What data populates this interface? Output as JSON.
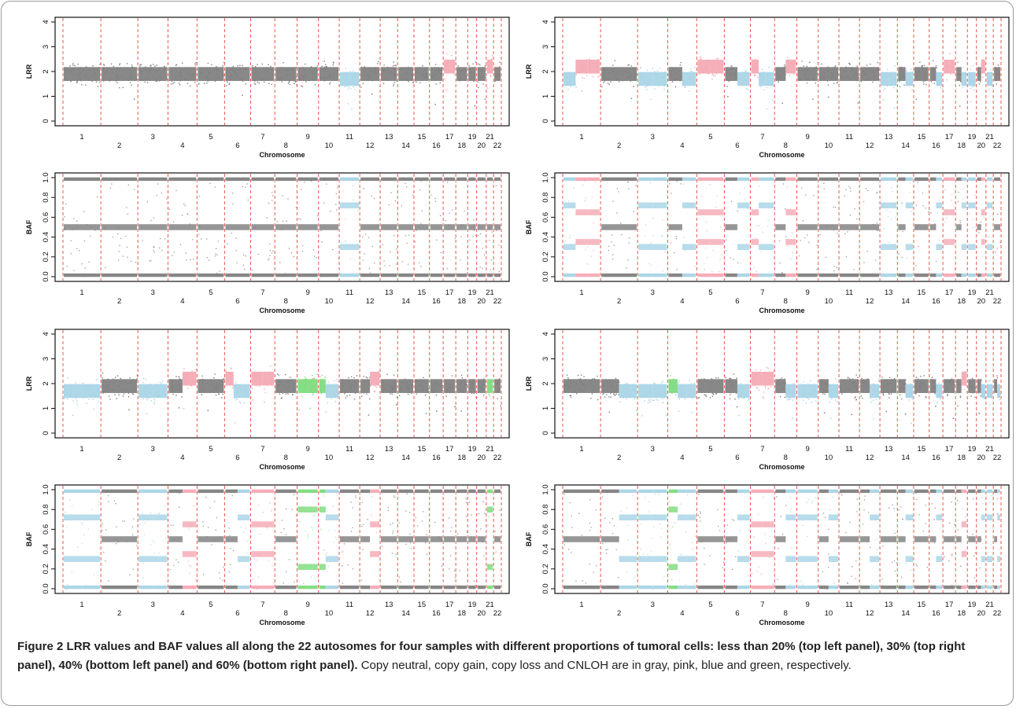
{
  "caption": {
    "label": "Figure 2",
    "title": "LRR values and BAF values all along the 22 autosomes for four samples with different proportions of tumoral cells: less than 20% (top left panel), 30% (top right panel), 40% (bottom left panel) and 60% (bottom right panel).",
    "description": "Copy neutral, copy gain, copy loss and CNLOH are in gray, pink, blue and green, respectively."
  },
  "colors": {
    "neutral": "#7f7f7f",
    "gain": "#f4a9b4",
    "loss": "#a8d4e6",
    "cnloh": "#7cdc7c",
    "separator": "#e8584c"
  },
  "chart_data": [
    {
      "type": "scatter",
      "panel": "top-left",
      "plot": "LRR",
      "ylabel": "LRR",
      "xlabel": "Chromosome",
      "yticks": [
        "0",
        "1",
        "2",
        "3",
        "4"
      ],
      "ylim": [
        0,
        4
      ],
      "chromosomes": [
        "1",
        "2",
        "3",
        "4",
        "5",
        "6",
        "7",
        "8",
        "9",
        "10",
        "11",
        "12",
        "13",
        "14",
        "15",
        "16",
        "17",
        "18",
        "19",
        "20",
        "21",
        "22"
      ],
      "segments": [
        [
          11,
          "loss"
        ],
        [
          17,
          "gain"
        ],
        [
          21,
          "gain"
        ]
      ]
    },
    {
      "type": "scatter",
      "panel": "top-left",
      "plot": "BAF",
      "ylabel": "BAF",
      "xlabel": "Chromosome",
      "yticks": [
        "0.0",
        "0.2",
        "0.4",
        "0.6",
        "0.8",
        "1.0"
      ],
      "ylim": [
        0,
        1
      ],
      "chromosomes": [
        "1",
        "2",
        "3",
        "4",
        "5",
        "6",
        "7",
        "8",
        "9",
        "10",
        "11",
        "12",
        "13",
        "14",
        "15",
        "16",
        "17",
        "18",
        "19",
        "20",
        "21",
        "22"
      ],
      "segments": [
        [
          11,
          "loss"
        ]
      ]
    },
    {
      "type": "scatter",
      "panel": "top-right",
      "plot": "LRR",
      "ylabel": "LRR",
      "xlabel": "Chromosome",
      "yticks": [
        "0",
        "1",
        "2",
        "3",
        "4"
      ],
      "ylim": [
        0,
        4
      ],
      "chromosomes": [
        "1",
        "2",
        "3",
        "4",
        "5",
        "6",
        "7",
        "8",
        "9",
        "10",
        "11",
        "12",
        "13",
        "14",
        "15",
        "16",
        "17",
        "18",
        "19",
        "20",
        "21",
        "22"
      ],
      "segments": [
        [
          1,
          "loss"
        ],
        [
          1,
          "gain"
        ],
        [
          3,
          "loss"
        ],
        [
          4,
          "loss"
        ],
        [
          5,
          "gain"
        ],
        [
          6,
          "loss"
        ],
        [
          7,
          "gain"
        ],
        [
          7,
          "loss"
        ],
        [
          8,
          "gain"
        ],
        [
          13,
          "loss"
        ],
        [
          14,
          "loss"
        ],
        [
          16,
          "loss"
        ],
        [
          17,
          "gain"
        ],
        [
          18,
          "loss"
        ],
        [
          19,
          "loss"
        ],
        [
          20,
          "gain"
        ],
        [
          21,
          "loss"
        ]
      ]
    },
    {
      "type": "scatter",
      "panel": "top-right",
      "plot": "BAF",
      "ylabel": "BAF",
      "xlabel": "Chromosome",
      "yticks": [
        "0.0",
        "0.2",
        "0.4",
        "0.6",
        "0.8",
        "1.0"
      ],
      "ylim": [
        0,
        1
      ],
      "chromosomes": [
        "1",
        "2",
        "3",
        "4",
        "5",
        "6",
        "7",
        "8",
        "9",
        "10",
        "11",
        "12",
        "13",
        "14",
        "15",
        "16",
        "17",
        "18",
        "19",
        "20",
        "21",
        "22"
      ],
      "segments": [
        [
          1,
          "loss"
        ],
        [
          1,
          "gain"
        ],
        [
          3,
          "loss"
        ],
        [
          4,
          "loss"
        ],
        [
          5,
          "gain"
        ],
        [
          6,
          "loss"
        ],
        [
          7,
          "gain"
        ],
        [
          7,
          "loss"
        ],
        [
          8,
          "gain"
        ],
        [
          13,
          "loss"
        ],
        [
          14,
          "loss"
        ],
        [
          16,
          "loss"
        ],
        [
          17,
          "gain"
        ],
        [
          18,
          "loss"
        ],
        [
          19,
          "loss"
        ],
        [
          20,
          "gain"
        ],
        [
          21,
          "loss"
        ]
      ]
    },
    {
      "type": "scatter",
      "panel": "bottom-left",
      "plot": "LRR",
      "ylabel": "LRR",
      "xlabel": "Chromosome",
      "yticks": [
        "0",
        "1",
        "2",
        "3",
        "4"
      ],
      "ylim": [
        0,
        4
      ],
      "chromosomes": [
        "1",
        "2",
        "3",
        "4",
        "5",
        "6",
        "7",
        "8",
        "9",
        "10",
        "11",
        "12",
        "13",
        "14",
        "15",
        "16",
        "17",
        "18",
        "19",
        "20",
        "21",
        "22"
      ],
      "segments": [
        [
          1,
          "loss"
        ],
        [
          3,
          "loss"
        ],
        [
          4,
          "gain"
        ],
        [
          6,
          "gain"
        ],
        [
          6,
          "loss"
        ],
        [
          7,
          "gain"
        ],
        [
          9,
          "cnloh"
        ],
        [
          10,
          "cnloh"
        ],
        [
          10,
          "loss"
        ],
        [
          12,
          "gain"
        ],
        [
          21,
          "cnloh"
        ]
      ]
    },
    {
      "type": "scatter",
      "panel": "bottom-left",
      "plot": "BAF",
      "ylabel": "BAF",
      "xlabel": "Chromosome",
      "yticks": [
        "0.0",
        "0.2",
        "0.4",
        "0.6",
        "0.8",
        "1.0"
      ],
      "ylim": [
        0,
        1
      ],
      "chromosomes": [
        "1",
        "2",
        "3",
        "4",
        "5",
        "6",
        "7",
        "8",
        "9",
        "10",
        "11",
        "12",
        "13",
        "14",
        "15",
        "16",
        "17",
        "18",
        "19",
        "20",
        "21",
        "22"
      ],
      "segments": [
        [
          1,
          "loss"
        ],
        [
          3,
          "loss"
        ],
        [
          4,
          "gain"
        ],
        [
          6,
          "loss"
        ],
        [
          7,
          "gain"
        ],
        [
          9,
          "cnloh"
        ],
        [
          10,
          "cnloh"
        ],
        [
          10,
          "loss"
        ],
        [
          12,
          "gain"
        ],
        [
          21,
          "cnloh"
        ]
      ]
    },
    {
      "type": "scatter",
      "panel": "bottom-right",
      "plot": "LRR",
      "ylabel": "LRR",
      "xlabel": "Chromosome",
      "yticks": [
        "0",
        "1",
        "2",
        "3",
        "4"
      ],
      "ylim": [
        0,
        4
      ],
      "chromosomes": [
        "1",
        "2",
        "3",
        "4",
        "5",
        "6",
        "7",
        "8",
        "9",
        "10",
        "11",
        "12",
        "13",
        "14",
        "15",
        "16",
        "17",
        "18",
        "19",
        "20",
        "21",
        "22"
      ],
      "segments": [
        [
          2,
          "loss"
        ],
        [
          3,
          "loss"
        ],
        [
          4,
          "cnloh"
        ],
        [
          4,
          "loss"
        ],
        [
          6,
          "loss"
        ],
        [
          7,
          "gain"
        ],
        [
          8,
          "loss"
        ],
        [
          9,
          "loss"
        ],
        [
          10,
          "loss"
        ],
        [
          12,
          "loss"
        ],
        [
          14,
          "loss"
        ],
        [
          16,
          "loss"
        ],
        [
          18,
          "gain"
        ],
        [
          20,
          "loss"
        ],
        [
          21,
          "loss"
        ],
        [
          22,
          "loss"
        ]
      ]
    },
    {
      "type": "scatter",
      "panel": "bottom-right",
      "plot": "BAF",
      "ylabel": "BAF",
      "xlabel": "Chromosome",
      "yticks": [
        "0.0",
        "0.2",
        "0.4",
        "0.6",
        "0.8",
        "1.0"
      ],
      "ylim": [
        0,
        1
      ],
      "chromosomes": [
        "1",
        "2",
        "3",
        "4",
        "5",
        "6",
        "7",
        "8",
        "9",
        "10",
        "11",
        "12",
        "13",
        "14",
        "15",
        "16",
        "17",
        "18",
        "19",
        "20",
        "21",
        "22"
      ],
      "segments": [
        [
          2,
          "loss"
        ],
        [
          3,
          "loss"
        ],
        [
          4,
          "cnloh"
        ],
        [
          4,
          "loss"
        ],
        [
          6,
          "loss"
        ],
        [
          7,
          "gain"
        ],
        [
          8,
          "loss"
        ],
        [
          9,
          "loss"
        ],
        [
          10,
          "loss"
        ],
        [
          12,
          "loss"
        ],
        [
          14,
          "loss"
        ],
        [
          16,
          "loss"
        ],
        [
          18,
          "gain"
        ],
        [
          20,
          "loss"
        ],
        [
          21,
          "loss"
        ],
        [
          22,
          "loss"
        ]
      ]
    }
  ]
}
